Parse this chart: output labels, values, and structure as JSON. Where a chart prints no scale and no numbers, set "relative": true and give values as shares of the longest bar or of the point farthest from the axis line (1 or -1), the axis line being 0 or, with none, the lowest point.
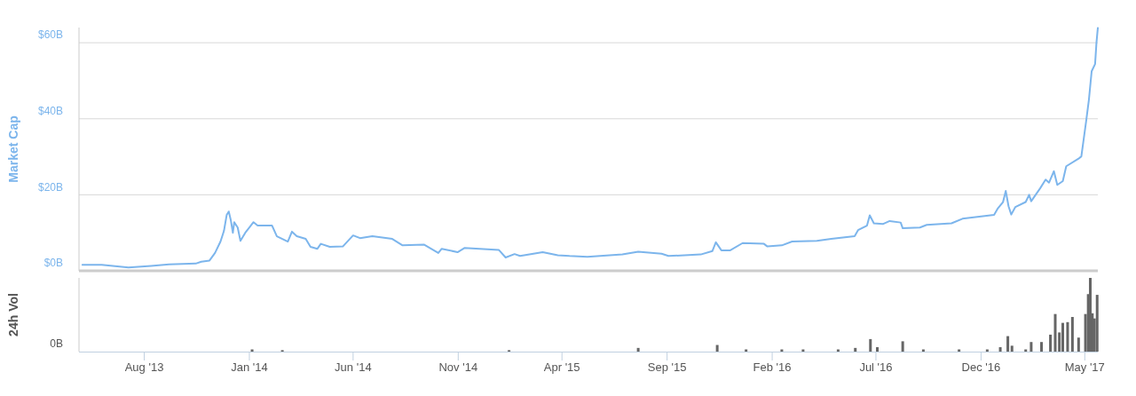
{
  "chart_data": [
    {
      "type": "line",
      "ylabel": "Market Cap",
      "xlim": [
        "2013-04-28",
        "2017-05-20"
      ],
      "ylim": [
        0,
        64
      ],
      "yticks": [
        {
          "value": 0,
          "label": "$0B"
        },
        {
          "value": 20,
          "label": "$20B"
        },
        {
          "value": 40,
          "label": "$40B"
        },
        {
          "value": 60,
          "label": "$60B"
        }
      ],
      "grid": "y",
      "tick_labels": "y",
      "x": [
        "2013-05-03",
        "2013-05-31",
        "2013-07-09",
        "2013-08-11",
        "2013-09-06",
        "2013-10-15",
        "2013-10-23",
        "2013-11-04",
        "2013-11-12",
        "2013-11-20",
        "2013-11-25",
        "2013-11-29",
        "2013-12-02",
        "2013-12-05",
        "2013-12-08",
        "2013-12-10",
        "2013-12-15",
        "2013-12-19",
        "2013-12-26",
        "2014-01-07",
        "2014-01-13",
        "2014-02-03",
        "2014-02-10",
        "2014-02-26",
        "2014-03-04",
        "2014-03-11",
        "2014-03-24",
        "2014-03-31",
        "2014-04-10",
        "2014-04-15",
        "2014-04-28",
        "2014-05-17",
        "2014-06-01",
        "2014-06-11",
        "2014-06-29",
        "2014-07-28",
        "2014-08-12",
        "2014-09-12",
        "2014-10-03",
        "2014-10-08",
        "2014-10-31",
        "2014-11-10",
        "2014-12-30",
        "2015-01-09",
        "2015-01-22",
        "2015-01-30",
        "2015-03-04",
        "2015-03-26",
        "2015-04-12",
        "2015-05-08",
        "2015-06-28",
        "2015-07-21",
        "2015-08-24",
        "2015-09-03",
        "2015-10-20",
        "2015-11-06",
        "2015-11-11",
        "2015-11-19",
        "2015-12-02",
        "2015-12-20",
        "2016-01-20",
        "2016-01-25",
        "2016-02-15",
        "2016-03-01",
        "2016-04-06",
        "2016-04-27",
        "2016-05-31",
        "2016-06-05",
        "2016-06-18",
        "2016-06-22",
        "2016-06-28",
        "2016-07-11",
        "2016-07-21",
        "2016-08-06",
        "2016-08-09",
        "2016-09-03",
        "2016-09-13",
        "2016-10-19",
        "2016-11-04",
        "2016-12-20",
        "2016-12-25",
        "2017-01-02",
        "2017-01-06",
        "2017-01-10",
        "2017-01-14",
        "2017-01-20",
        "2017-02-04",
        "2017-02-09",
        "2017-02-12",
        "2017-02-25",
        "2017-03-05",
        "2017-03-10",
        "2017-03-17",
        "2017-03-22",
        "2017-03-30",
        "2017-04-04",
        "2017-04-22",
        "2017-04-26",
        "2017-05-03",
        "2017-05-07",
        "2017-05-11",
        "2017-05-16",
        "2017-05-18",
        "2017-05-20"
      ],
      "series": [
        {
          "color": "#7cb5ec",
          "values": [
            1.6,
            1.6,
            0.9,
            1.3,
            1.7,
            1.9,
            2.4,
            2.7,
            4.7,
            7.7,
            10.5,
            14.7,
            15.6,
            13.3,
            10.0,
            12.8,
            11.4,
            7.9,
            10.0,
            12.8,
            11.9,
            11.9,
            9.1,
            7.7,
            10.3,
            9.1,
            8.4,
            6.3,
            5.8,
            7.1,
            6.3,
            6.4,
            9.3,
            8.6,
            9.1,
            8.4,
            6.7,
            6.9,
            4.7,
            5.8,
            4.9,
            6.0,
            5.5,
            3.5,
            4.4,
            3.9,
            4.9,
            4.1,
            3.9,
            3.7,
            4.3,
            5.0,
            4.5,
            3.9,
            4.3,
            5.2,
            7.5,
            5.4,
            5.4,
            7.3,
            7.1,
            6.4,
            6.7,
            7.7,
            7.9,
            8.4,
            9.1,
            10.7,
            11.9,
            14.6,
            12.5,
            12.3,
            13.1,
            12.7,
            11.2,
            11.4,
            12.1,
            12.5,
            13.7,
            14.7,
            16.3,
            18.1,
            21.0,
            17.0,
            14.8,
            16.8,
            18.1,
            20.0,
            18.3,
            21.7,
            24.0,
            23.2,
            26.2,
            22.6,
            23.6,
            27.5,
            29.5,
            30.1,
            39.4,
            45.0,
            52.5,
            54.4,
            60.0,
            63.9
          ]
        }
      ]
    },
    {
      "type": "bar",
      "ylabel": "24h Vol",
      "relative": true,
      "annotations": [
        "0B"
      ],
      "xlim": [
        "2013-04-28",
        "2017-05-20"
      ],
      "xticks": [
        {
          "value": "2013-08-01",
          "label": "Aug '13"
        },
        {
          "value": "2014-01-01",
          "label": "Jan '14"
        },
        {
          "value": "2014-06-01",
          "label": "Jun '14"
        },
        {
          "value": "2014-11-01",
          "label": "Nov '14"
        },
        {
          "value": "2015-04-01",
          "label": "Apr '15"
        },
        {
          "value": "2015-09-01",
          "label": "Sep '15"
        },
        {
          "value": "2016-02-01",
          "label": "Feb '16"
        },
        {
          "value": "2016-07-01",
          "label": "Jul '16"
        },
        {
          "value": "2016-12-01",
          "label": "Dec '16"
        },
        {
          "value": "2017-05-01",
          "label": "May '17"
        }
      ],
      "grid": false,
      "x": [
        "2014-01-05",
        "2014-02-18",
        "2015-01-14",
        "2015-07-21",
        "2015-11-13",
        "2015-12-25",
        "2016-02-15",
        "2016-03-17",
        "2016-05-07",
        "2016-06-01",
        "2016-06-23",
        "2016-07-03",
        "2016-08-09",
        "2016-09-08",
        "2016-10-30",
        "2016-12-10",
        "2016-12-29",
        "2017-01-09",
        "2017-01-15",
        "2017-02-04",
        "2017-02-12",
        "2017-02-27",
        "2017-03-12",
        "2017-03-19",
        "2017-03-25",
        "2017-03-30",
        "2017-04-06",
        "2017-04-13",
        "2017-04-22",
        "2017-05-02",
        "2017-05-06",
        "2017-05-09",
        "2017-05-12",
        "2017-05-15",
        "2017-05-19"
      ],
      "series": [
        {
          "color": "#666666",
          "values": [
            0.03,
            0.02,
            0.02,
            0.05,
            0.09,
            0.03,
            0.03,
            0.03,
            0.03,
            0.05,
            0.17,
            0.06,
            0.14,
            0.03,
            0.03,
            0.03,
            0.06,
            0.21,
            0.08,
            0.03,
            0.13,
            0.13,
            0.23,
            0.51,
            0.26,
            0.39,
            0.4,
            0.47,
            0.19,
            0.51,
            0.78,
            1,
            0.52,
            0.45,
            0.77
          ]
        }
      ]
    }
  ]
}
